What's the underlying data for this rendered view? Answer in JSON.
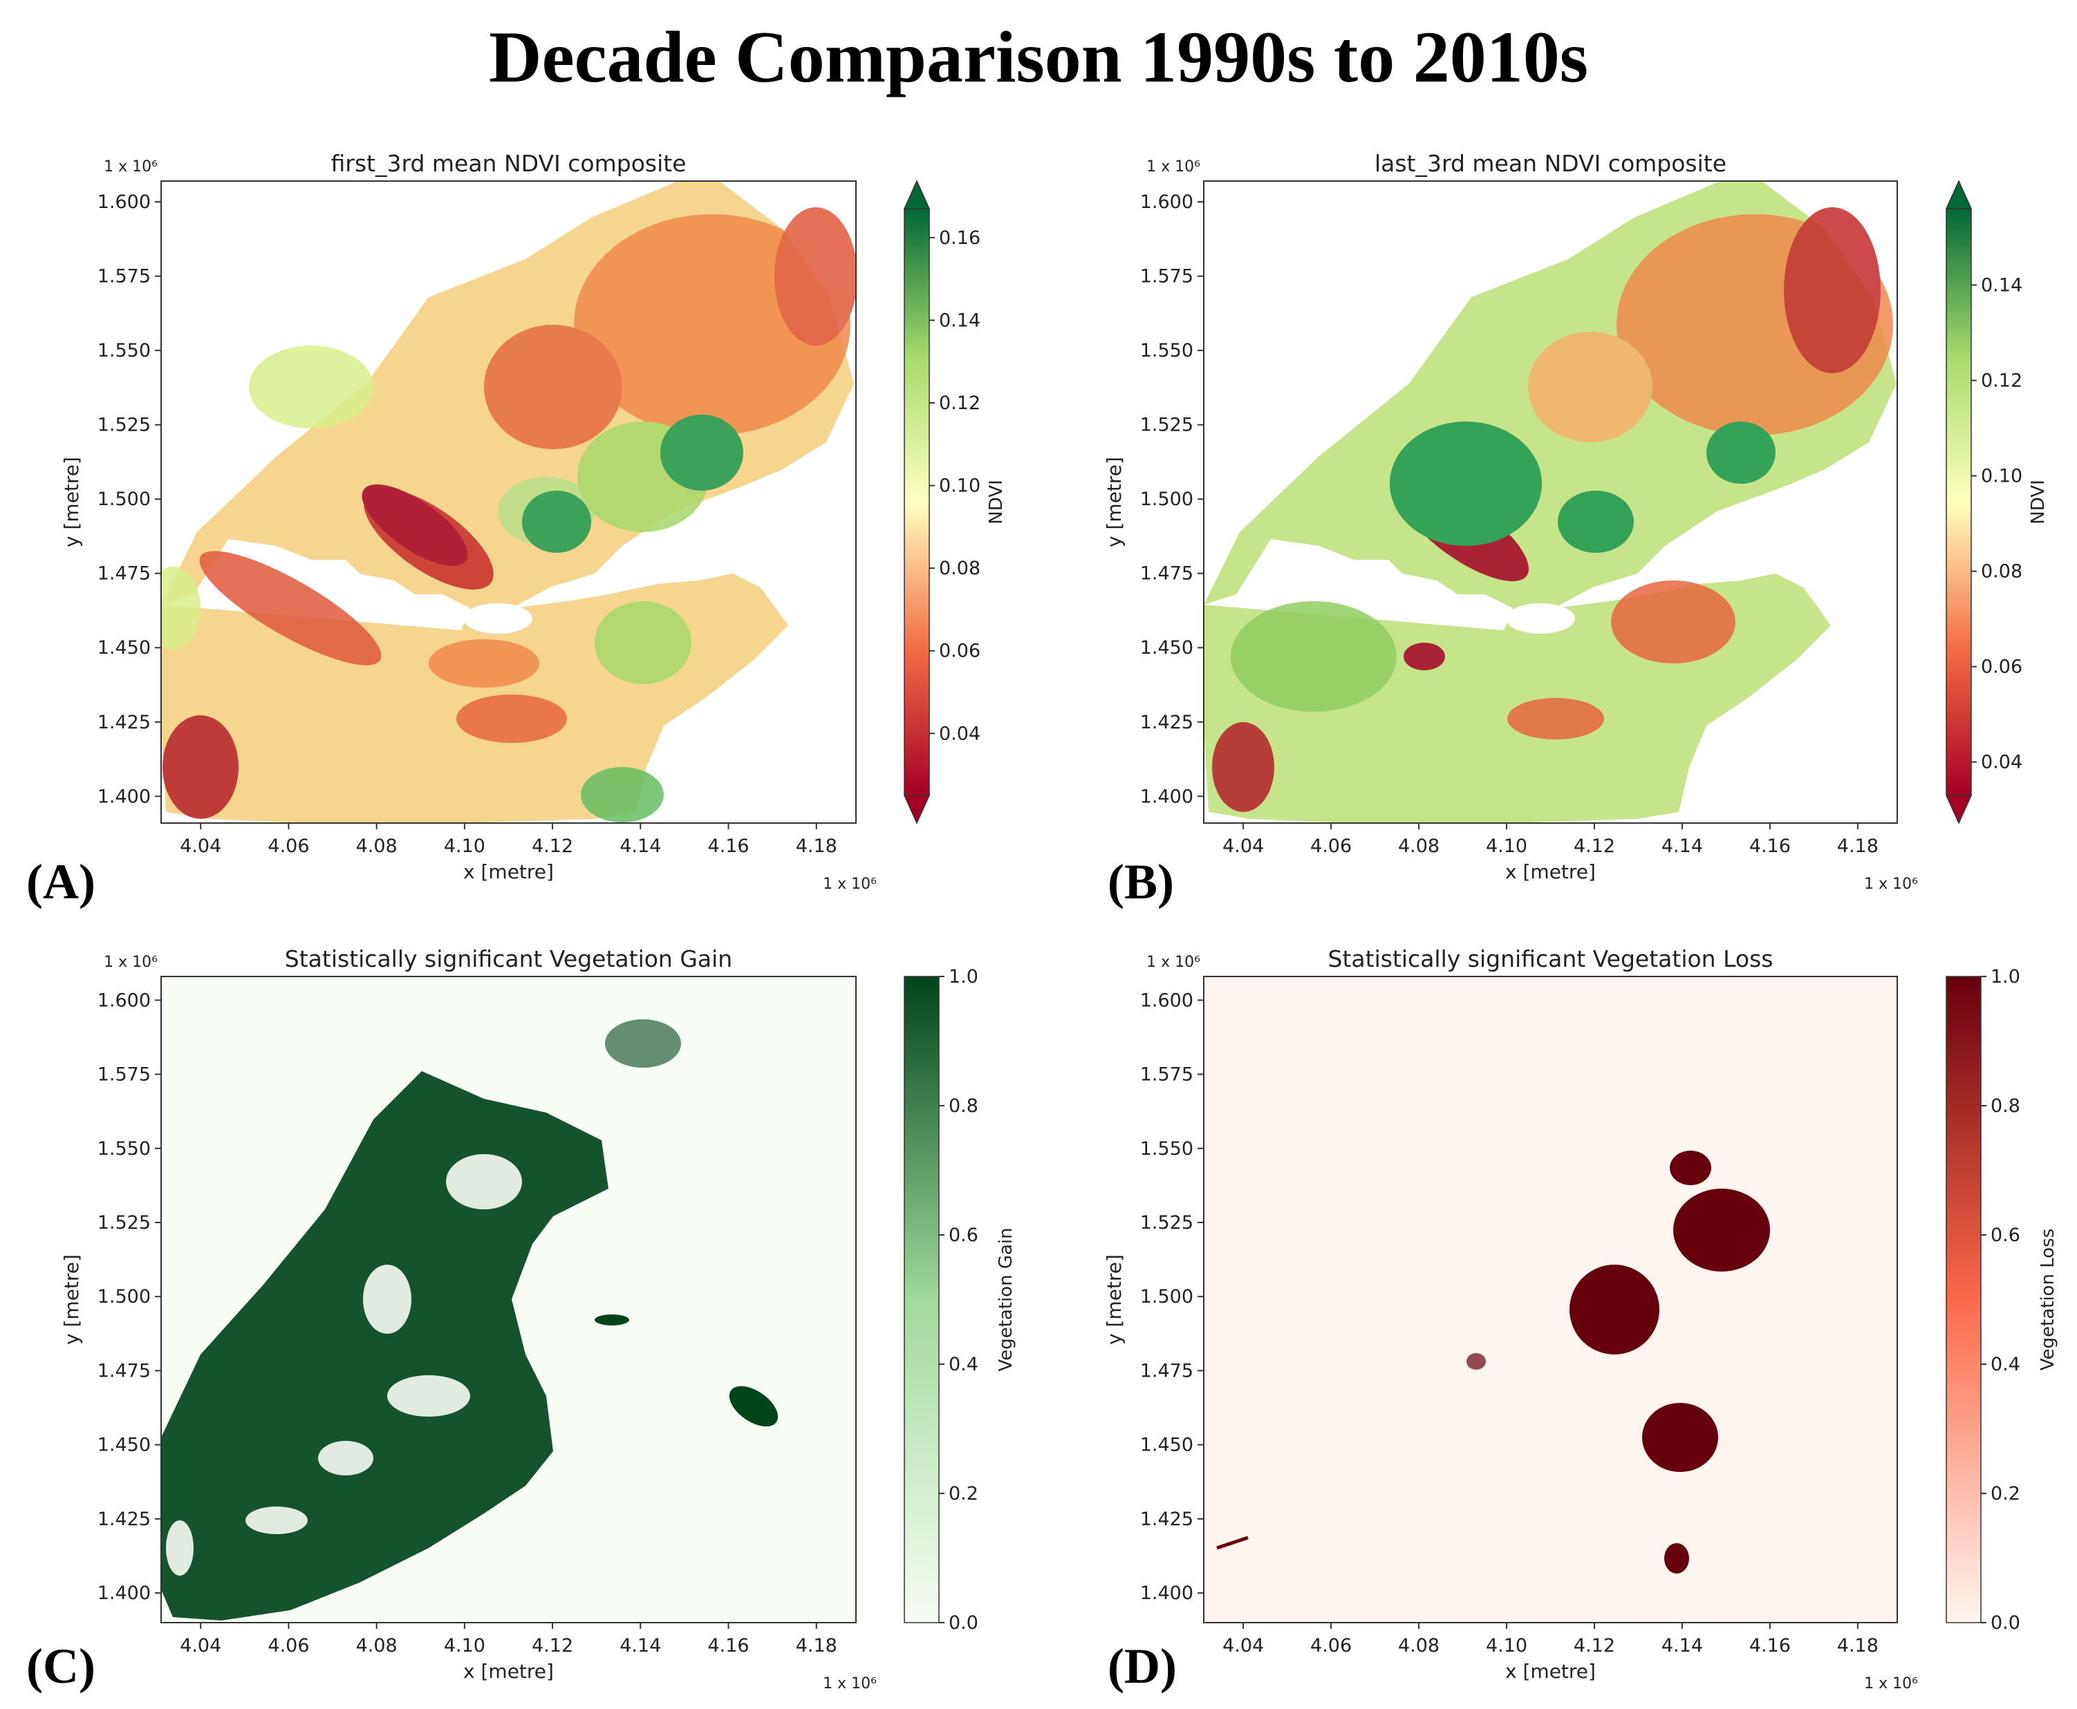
{
  "figure_title": "Decade Comparison 1990s to 2010s",
  "colors": {
    "ndvi_low": "#a50026",
    "ndvi_mid": "#ffffbf",
    "ndvi_high": "#006837",
    "gain_low": "#f7fcf5",
    "gain_high": "#00441b",
    "loss_low": "#fff5f0",
    "loss_high": "#67000d"
  },
  "chart_data": [
    {
      "type": "heatmap",
      "panel_label": "(A)",
      "title": "first_3rd mean NDVI composite",
      "xlabel": "x [metre]",
      "ylabel": "y [metre]",
      "x_scale_label": "1 x 10⁶",
      "y_scale_label": "1 x 10⁶",
      "xlim": [
        4.031,
        4.189
      ],
      "ylim": [
        1.391,
        1.607
      ],
      "x_ticks": [
        "4.04",
        "4.06",
        "4.08",
        "4.10",
        "4.12",
        "4.14",
        "4.16",
        "4.18"
      ],
      "x_tick_values": [
        4.04,
        4.06,
        4.08,
        4.1,
        4.12,
        4.14,
        4.16,
        4.18
      ],
      "y_ticks": [
        "1.400",
        "1.425",
        "1.450",
        "1.475",
        "1.500",
        "1.525",
        "1.550",
        "1.575",
        "1.600"
      ],
      "y_tick_values": [
        1.4,
        1.425,
        1.45,
        1.475,
        1.5,
        1.525,
        1.55,
        1.575,
        1.6
      ],
      "colorbar": {
        "label": "NDVI",
        "colormap": "RdYlGn",
        "range": [
          0.025,
          0.167
        ],
        "ticks": [
          "0.04",
          "0.06",
          "0.08",
          "0.10",
          "0.12",
          "0.14",
          "0.16"
        ],
        "tick_values": [
          0.04,
          0.06,
          0.08,
          0.1,
          0.12,
          0.14,
          0.16
        ],
        "extend": "both"
      }
    },
    {
      "type": "heatmap",
      "panel_label": "(B)",
      "title": "last_3rd mean NDVI composite",
      "xlabel": "x [metre]",
      "ylabel": "y [metre]",
      "x_scale_label": "1 x 10⁶",
      "y_scale_label": "1 x 10⁶",
      "xlim": [
        4.031,
        4.189
      ],
      "ylim": [
        1.391,
        1.607
      ],
      "x_ticks": [
        "4.04",
        "4.06",
        "4.08",
        "4.10",
        "4.12",
        "4.14",
        "4.16",
        "4.18"
      ],
      "x_tick_values": [
        4.04,
        4.06,
        4.08,
        4.1,
        4.12,
        4.14,
        4.16,
        4.18
      ],
      "y_ticks": [
        "1.400",
        "1.425",
        "1.450",
        "1.475",
        "1.500",
        "1.525",
        "1.550",
        "1.575",
        "1.600"
      ],
      "y_tick_values": [
        1.4,
        1.425,
        1.45,
        1.475,
        1.5,
        1.525,
        1.55,
        1.575,
        1.6
      ],
      "colorbar": {
        "label": "NDVI",
        "colormap": "RdYlGn",
        "range": [
          0.033,
          0.156
        ],
        "ticks": [
          "0.04",
          "0.06",
          "0.08",
          "0.10",
          "0.12",
          "0.14"
        ],
        "tick_values": [
          0.04,
          0.06,
          0.08,
          0.1,
          0.12,
          0.14
        ],
        "extend": "both"
      }
    },
    {
      "type": "heatmap",
      "panel_label": "(C)",
      "title": "Statistically significant Vegetation Gain",
      "xlabel": "x [metre]",
      "ylabel": "y [metre]",
      "x_scale_label": "1 x 10⁶",
      "y_scale_label": "1 x 10⁶",
      "xlim": [
        4.031,
        4.189
      ],
      "ylim": [
        1.39,
        1.608
      ],
      "x_ticks": [
        "4.04",
        "4.06",
        "4.08",
        "4.10",
        "4.12",
        "4.14",
        "4.16",
        "4.18"
      ],
      "x_tick_values": [
        4.04,
        4.06,
        4.08,
        4.1,
        4.12,
        4.14,
        4.16,
        4.18
      ],
      "y_ticks": [
        "1.400",
        "1.425",
        "1.450",
        "1.475",
        "1.500",
        "1.525",
        "1.550",
        "1.575",
        "1.600"
      ],
      "y_tick_values": [
        1.4,
        1.425,
        1.45,
        1.475,
        1.5,
        1.525,
        1.55,
        1.575,
        1.6
      ],
      "colorbar": {
        "label": "Vegetation Gain",
        "colormap": "Greens",
        "range": [
          0.0,
          1.0
        ],
        "ticks": [
          "0.0",
          "0.2",
          "0.4",
          "0.6",
          "0.8",
          "1.0"
        ],
        "tick_values": [
          0.0,
          0.2,
          0.4,
          0.6,
          0.8,
          1.0
        ],
        "extend": "neither"
      }
    },
    {
      "type": "heatmap",
      "panel_label": "(D)",
      "title": "Statistically significant Vegetation Loss",
      "xlabel": "x [metre]",
      "ylabel": "y [metre]",
      "x_scale_label": "1 x 10⁶",
      "y_scale_label": "1 x 10⁶",
      "xlim": [
        4.031,
        4.189
      ],
      "ylim": [
        1.39,
        1.608
      ],
      "x_ticks": [
        "4.04",
        "4.06",
        "4.08",
        "4.10",
        "4.12",
        "4.14",
        "4.16",
        "4.18"
      ],
      "x_tick_values": [
        4.04,
        4.06,
        4.08,
        4.1,
        4.12,
        4.14,
        4.16,
        4.18
      ],
      "y_ticks": [
        "1.400",
        "1.425",
        "1.450",
        "1.475",
        "1.500",
        "1.525",
        "1.550",
        "1.575",
        "1.600"
      ],
      "y_tick_values": [
        1.4,
        1.425,
        1.45,
        1.475,
        1.5,
        1.525,
        1.55,
        1.575,
        1.6
      ],
      "colorbar": {
        "label": "Vegetation Loss",
        "colormap": "Reds",
        "range": [
          0.0,
          1.0
        ],
        "ticks": [
          "0.0",
          "0.2",
          "0.4",
          "0.6",
          "0.8",
          "1.0"
        ],
        "tick_values": [
          0.0,
          0.2,
          0.4,
          0.6,
          0.8,
          1.0
        ],
        "extend": "neither"
      }
    }
  ]
}
